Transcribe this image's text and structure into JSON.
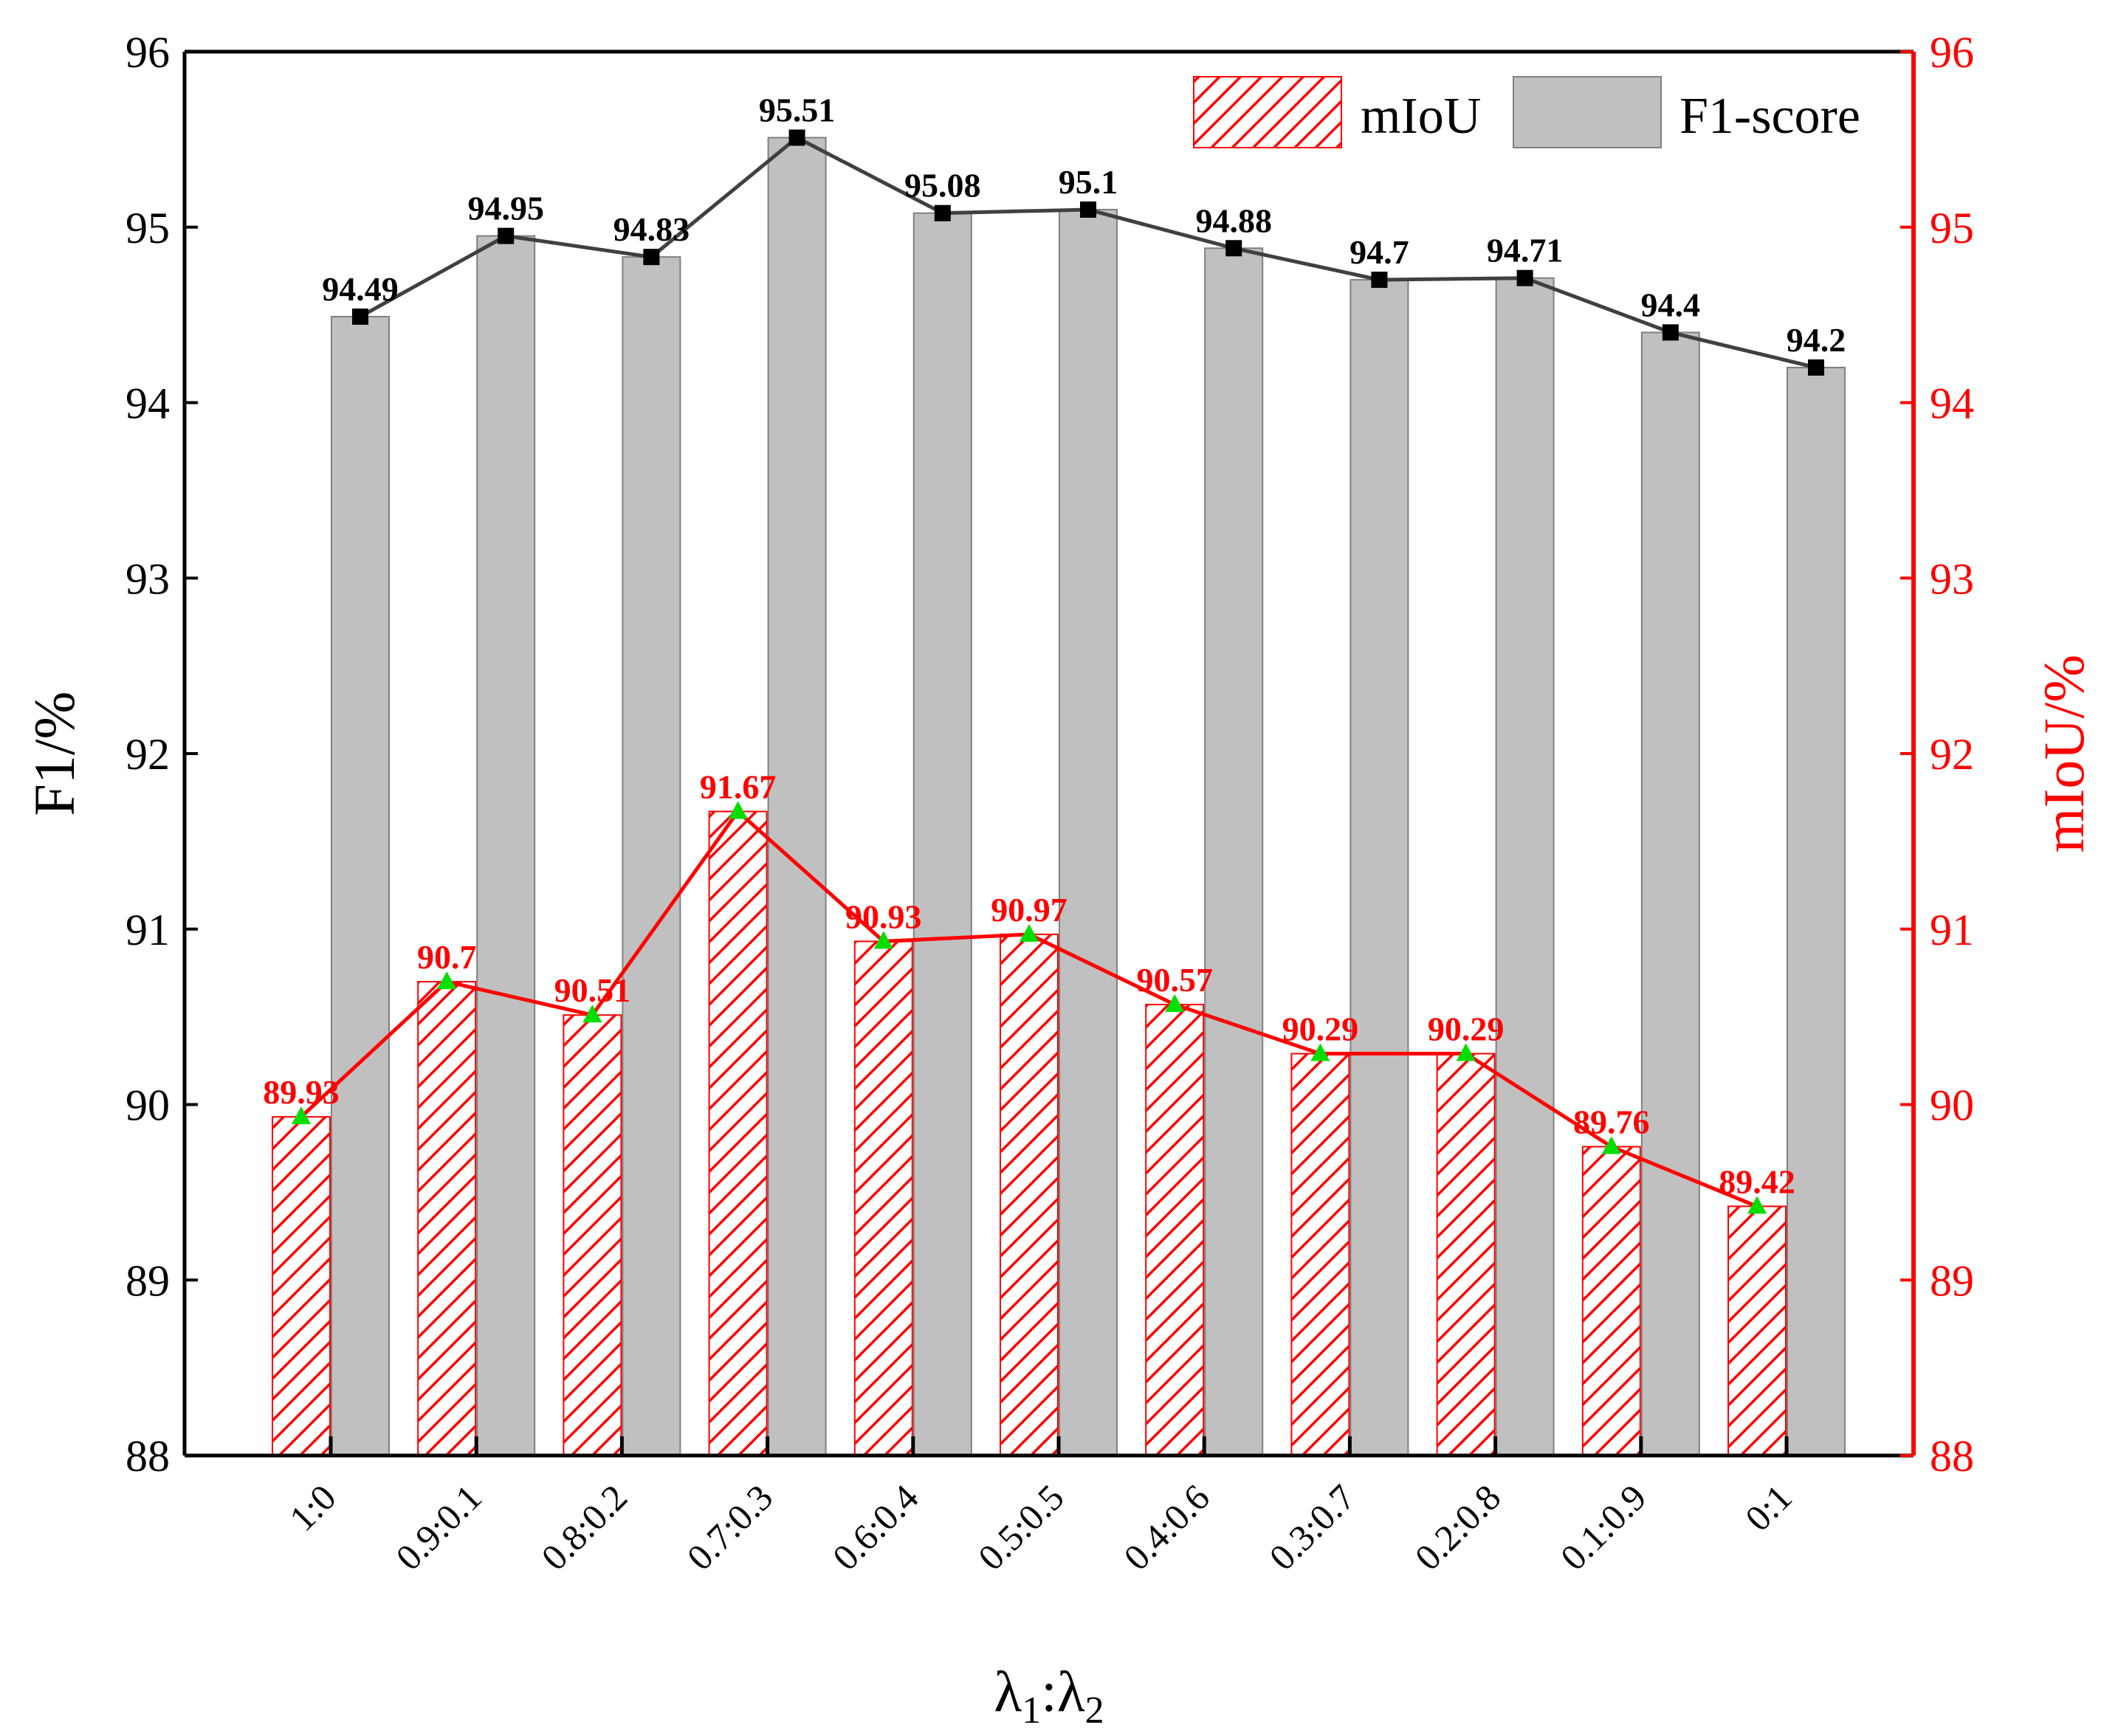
{
  "chart_data": {
    "type": "bar",
    "categories": [
      "1:0",
      "0.9:0.1",
      "0.8:0.2",
      "0.7:0.3",
      "0.6:0.4",
      "0.5:0.5",
      "0.4:0.6",
      "0.3:0.7",
      "0.2:0.8",
      "0.1:0.9",
      "0:1"
    ],
    "series": [
      {
        "name": "mIoU",
        "axis": "right",
        "style": "hatched-bar-with-line",
        "values": [
          89.93,
          90.7,
          90.51,
          91.67,
          90.93,
          90.97,
          90.57,
          90.29,
          90.29,
          89.76,
          89.42
        ],
        "labels": [
          "89.93",
          "90.7",
          "90.51",
          "91.67",
          "90.93",
          "90.97",
          "90.57",
          "90.29",
          "90.29",
          "89.76",
          "89.42"
        ]
      },
      {
        "name": "F1-score",
        "axis": "left",
        "style": "gray-bar-with-line",
        "values": [
          94.49,
          94.95,
          94.83,
          95.51,
          95.08,
          95.1,
          94.88,
          94.7,
          94.71,
          94.4,
          94.2
        ],
        "labels": [
          "94.49",
          "94.95",
          "94.83",
          "95.51",
          "95.08",
          "95.1",
          "94.88",
          "94.7",
          "94.71",
          "94.4",
          "94.2"
        ]
      }
    ],
    "xlabel": "λ1:λ2",
    "ylabel_left": "F1/%",
    "ylabel_right": "mIoU/%",
    "ylim_left": [
      88,
      96
    ],
    "ylim_right": [
      88,
      96
    ],
    "yticks": [
      "88",
      "89",
      "90",
      "91",
      "92",
      "93",
      "94",
      "95",
      "96"
    ],
    "legend_position": "top-right",
    "grid": false
  },
  "colors": {
    "f1_bar": "#c0c0c0",
    "f1_line": "#404040",
    "f1_marker": "#000000",
    "miou": "#ff0000",
    "miou_marker": "#00dd00",
    "axis": "#000000"
  },
  "legend": {
    "miou_label": "mIoU",
    "f1_label": "F1-score"
  }
}
